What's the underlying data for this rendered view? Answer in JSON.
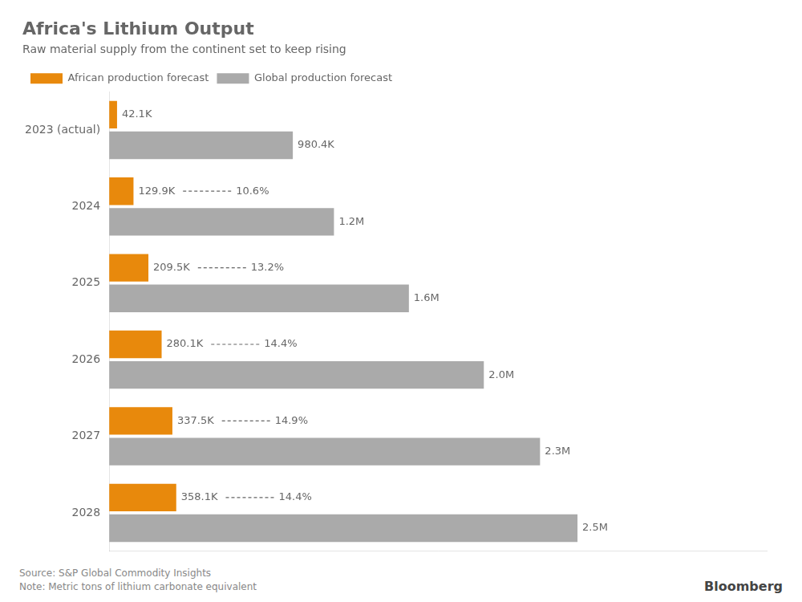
{
  "chart_data": {
    "type": "bar",
    "orientation": "horizontal",
    "title": "Africa's Lithium Output",
    "subtitle": "Raw material supply from the continent set to keep rising",
    "categories": [
      "2023 (actual)",
      "2024",
      "2025",
      "2026",
      "2027",
      "2028"
    ],
    "series": [
      {
        "name": "African production forecast",
        "color": "#E8890C",
        "values": [
          42100,
          129900,
          209500,
          280100,
          337500,
          358100
        ],
        "value_labels": [
          "42.1K",
          "129.9K",
          "209.5K",
          "280.1K",
          "337.5K",
          "358.1K"
        ],
        "annotations": [
          null,
          "10.6%",
          "13.2%",
          "14.4%",
          "14.9%",
          "14.4%"
        ]
      },
      {
        "name": "Global production forecast",
        "color": "#AAAAAA",
        "values": [
          980400,
          1200000,
          1600000,
          2000000,
          2300000,
          2500000
        ],
        "value_labels": [
          "980.4K",
          "1.2M",
          "1.6M",
          "2.0M",
          "2.3M",
          "2.5M"
        ]
      }
    ],
    "xlim": [
      0,
      3510000
    ],
    "tick_labels": "y",
    "grid": false,
    "legend": "top left",
    "data_labels": true,
    "footer": [
      "Source: S&P Global Commodity Insights",
      "Note: Metric tons of lithium carbonate equivalent"
    ],
    "credit": "Bloomberg"
  }
}
